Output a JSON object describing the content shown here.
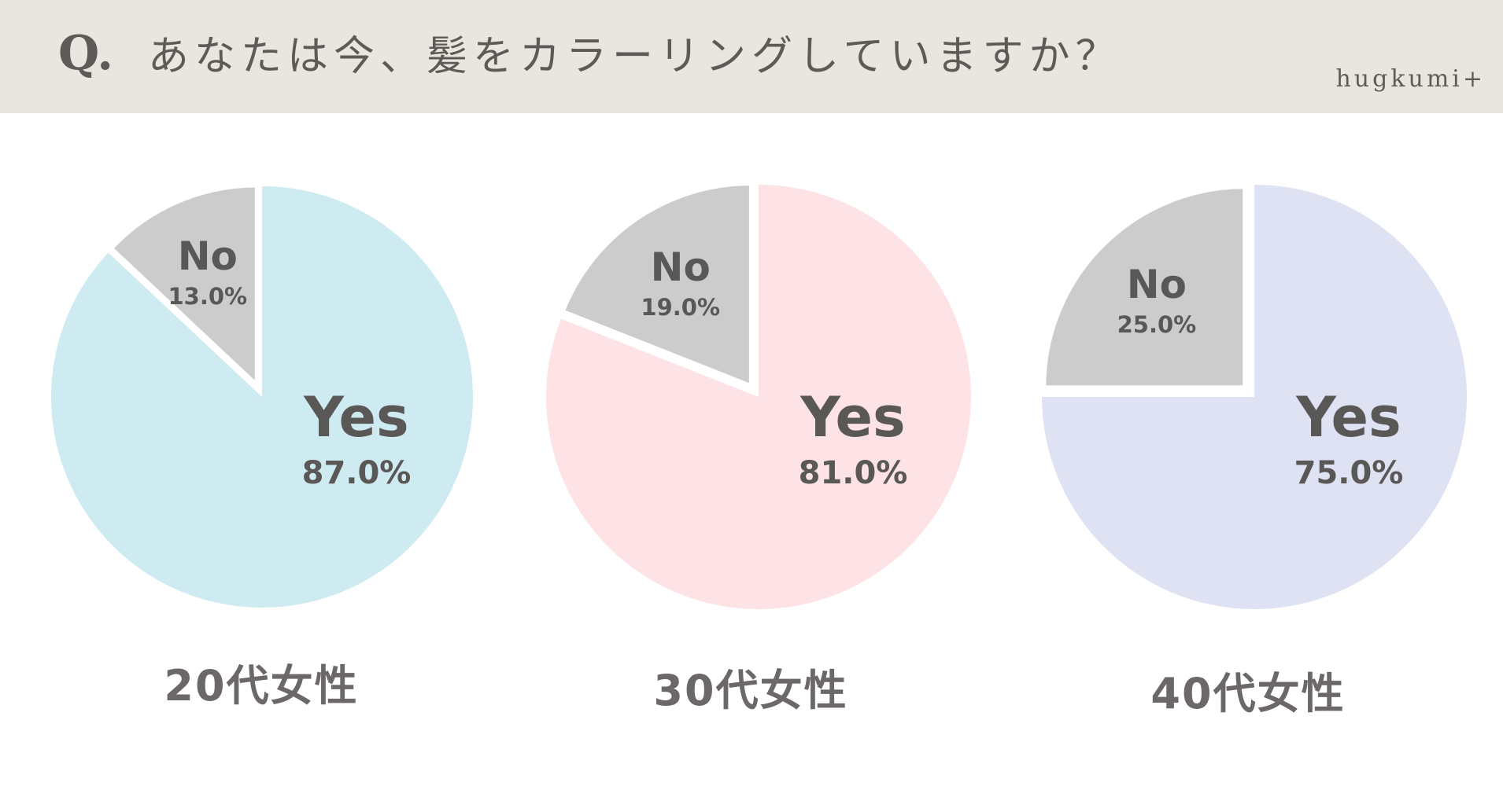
{
  "header": {
    "q_mark": "Q.",
    "title": "あなたは今、髪をカラーリングしていますか？",
    "brand": "hugkumi+"
  },
  "colors": {
    "header_bg": "#e9e6e0",
    "no_slice": "#cccccc",
    "yes_20s": "#cdebf1",
    "yes_30s": "#fde3e6",
    "yes_40s": "#dfe2f3",
    "label_text": "#5a5757"
  },
  "chart_data": [
    {
      "type": "pie",
      "group_label": "20代女性",
      "slices": [
        {
          "label": "No",
          "value": 13.0,
          "value_label": "13.0%"
        },
        {
          "label": "Yes",
          "value": 87.0,
          "value_label": "87.0%"
        }
      ]
    },
    {
      "type": "pie",
      "group_label": "30代女性",
      "slices": [
        {
          "label": "No",
          "value": 19.0,
          "value_label": "19.0%"
        },
        {
          "label": "Yes",
          "value": 81.0,
          "value_label": "81.0%"
        }
      ]
    },
    {
      "type": "pie",
      "group_label": "40代女性",
      "slices": [
        {
          "label": "No",
          "value": 25.0,
          "value_label": "25.0%"
        },
        {
          "label": "Yes",
          "value": 75.0,
          "value_label": "75.0%"
        }
      ]
    }
  ]
}
